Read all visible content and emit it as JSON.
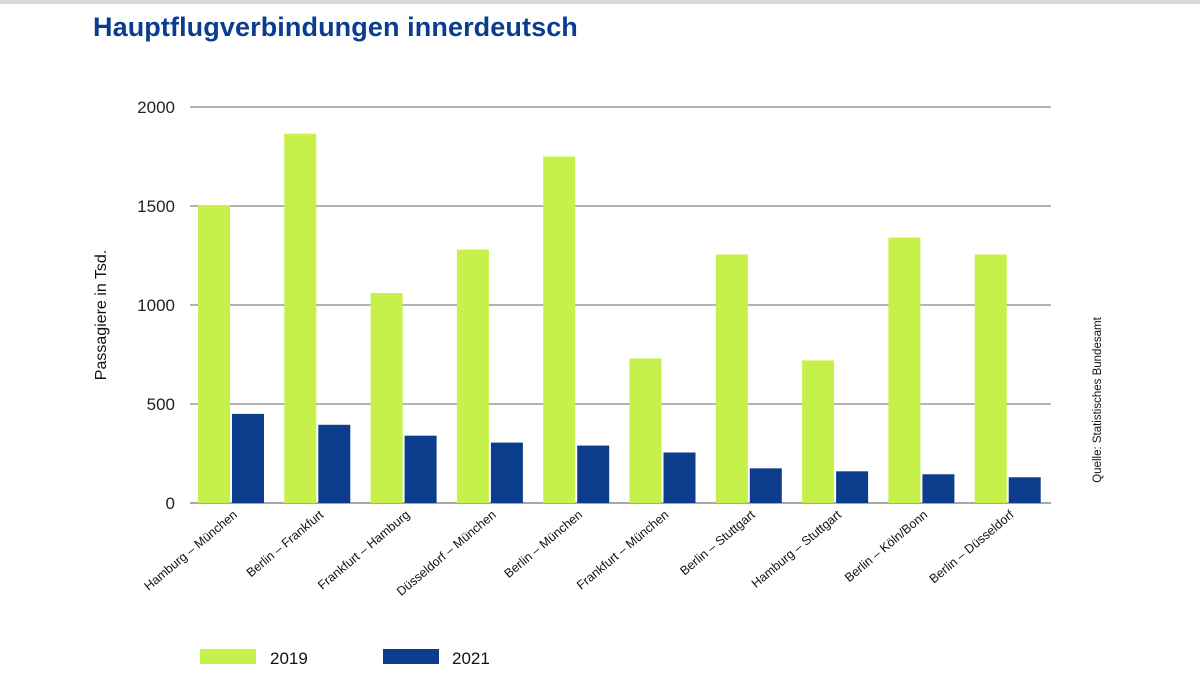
{
  "chart_data": {
    "type": "bar",
    "title": "Hauptflugverbindungen innerdeutsch",
    "xlabel": "",
    "ylabel": "Passagiere in Tsd.",
    "source": "Quelle: Statistisches Bundesamt",
    "ylim": [
      0,
      2000
    ],
    "yticks": [
      0,
      500,
      1000,
      1500,
      2000
    ],
    "grid": true,
    "legend_position": "bottom-left",
    "categories": [
      "Hamburg – München",
      "Berlin – Frankfurt",
      "Frankfurt – Hamburg",
      "Düsseldorf – München",
      "Berlin – München",
      "Frankfurt – München",
      "Berlin – Stuttgart",
      "Hamburg – Stuttgart",
      "Berlin – Köln/Bonn",
      "Berlin – Düsseldorf"
    ],
    "series": [
      {
        "name": "2019",
        "color": "#c6f14a",
        "values": [
          1505,
          1865,
          1060,
          1280,
          1750,
          730,
          1255,
          720,
          1340,
          1255
        ]
      },
      {
        "name": "2021",
        "color": "#0c3d8c",
        "values": [
          450,
          395,
          340,
          305,
          290,
          255,
          175,
          160,
          145,
          130
        ]
      }
    ]
  }
}
